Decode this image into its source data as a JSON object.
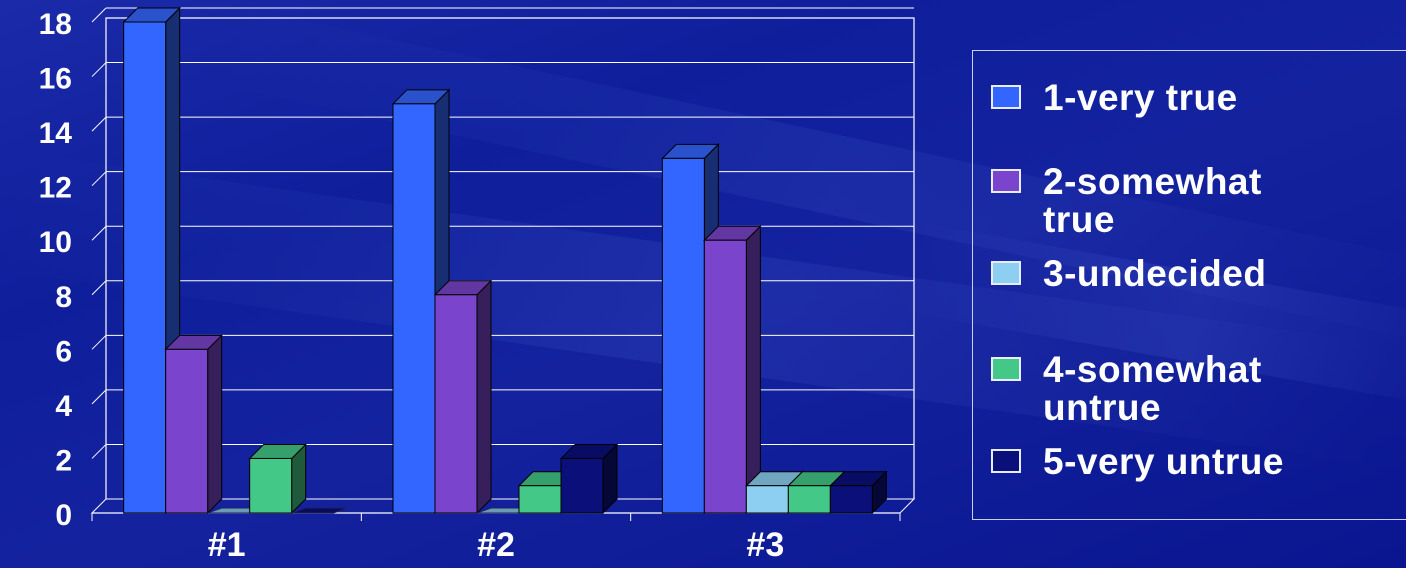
{
  "chart_data": {
    "type": "bar",
    "categories": [
      "#1",
      "#2",
      "#3"
    ],
    "series": [
      {
        "name": "1-very true",
        "values": [
          18,
          15,
          13
        ],
        "color": "#3366ff"
      },
      {
        "name": "2-somewhat true",
        "values": [
          6,
          8,
          10
        ],
        "color": "#7a44cc"
      },
      {
        "name": "3-undecided",
        "values": [
          0,
          0,
          1
        ],
        "color": "#8ccff0"
      },
      {
        "name": "4-somewhat untrue",
        "values": [
          2,
          1,
          1
        ],
        "color": "#44c888"
      },
      {
        "name": "5-very untrue",
        "values": [
          0,
          2,
          1
        ],
        "color": "#0a0f7a"
      }
    ],
    "ylim": [
      0,
      18
    ],
    "yticks": [
      0,
      2,
      4,
      6,
      8,
      10,
      12,
      14,
      16,
      18
    ],
    "grid": true,
    "legend_position": "right",
    "style": "3d"
  },
  "legend": {
    "items": [
      {
        "line1": "1-very true",
        "line2": ""
      },
      {
        "line1": "2-somewhat",
        "line2": "true"
      },
      {
        "line1": "3-undecided",
        "line2": ""
      },
      {
        "line1": "4-somewhat",
        "line2": "untrue"
      },
      {
        "line1": "5-very untrue",
        "line2": ""
      }
    ]
  }
}
